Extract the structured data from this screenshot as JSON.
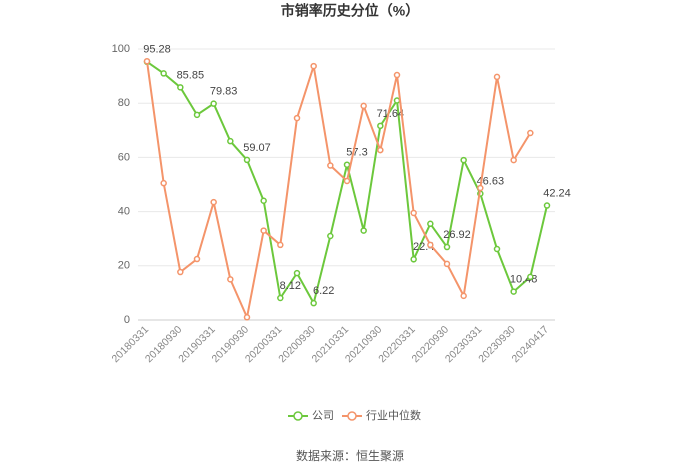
{
  "chart_data": {
    "type": "line",
    "title": "市销率历史分位（%）",
    "categories": [
      "20180331",
      null,
      "20180930",
      null,
      "20190331",
      null,
      "20190930",
      null,
      "20200331",
      null,
      "20200930",
      null,
      "20210331",
      null,
      "20210930",
      null,
      "20220331",
      null,
      "20220930",
      null,
      "20230331",
      null,
      "20230930",
      null,
      "20240417"
    ],
    "series": [
      {
        "name": "公司",
        "color": "#6cc83c",
        "values": [
          95.28,
          91,
          85.85,
          75.7,
          79.83,
          66,
          59.07,
          44,
          8.12,
          17.3,
          6.22,
          31,
          57.3,
          33,
          71.64,
          81,
          22.4,
          35.5,
          26.92,
          59,
          46.63,
          26.2,
          10.48,
          15.9,
          42.24
        ]
      },
      {
        "name": "行业中位数",
        "color": "#f4946a",
        "values": [
          95.5,
          50.5,
          17.7,
          22.5,
          43.5,
          15,
          1,
          33,
          27.7,
          74.5,
          93.7,
          57,
          51.3,
          79,
          62.7,
          90.4,
          39.5,
          27.7,
          20.7,
          8.9,
          48.7,
          89.7,
          59,
          69,
          null
        ]
      }
    ],
    "ylim": [
      0,
      100
    ],
    "yticks": [
      0,
      20,
      40,
      60,
      80,
      100
    ],
    "grid": true,
    "source": "数据来源：恒生聚源"
  }
}
